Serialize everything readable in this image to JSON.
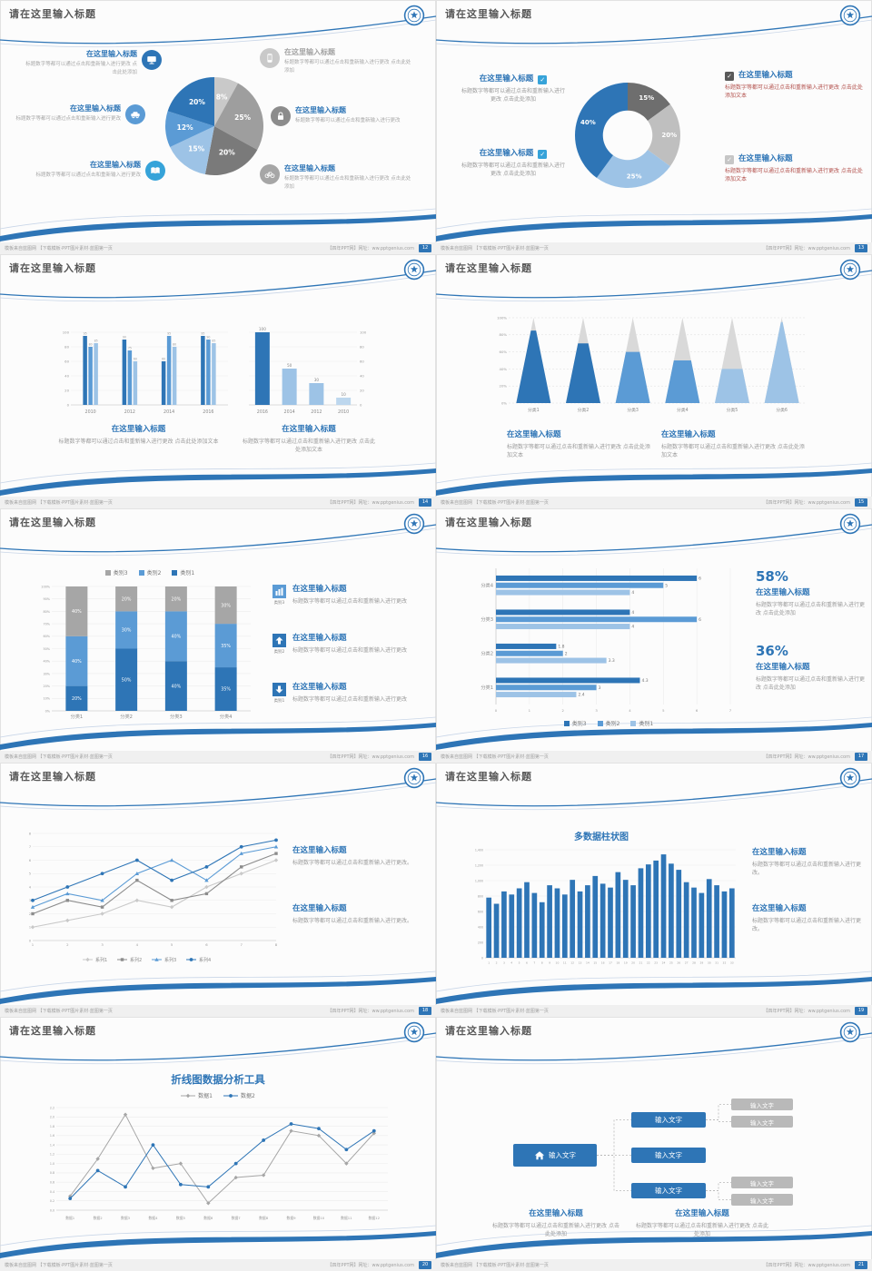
{
  "colors": {
    "accent_dark": "#2e75b6",
    "accent_mid": "#5b9bd5",
    "accent_light": "#9dc3e6",
    "accent_pale": "#bdd7ee",
    "gray_dark": "#6e6e6e",
    "gray_mid": "#a6a6a6",
    "gray_light": "#c9c9c9",
    "text_gray": "#9a9a9a",
    "red_text": "#b3524e"
  },
  "common": {
    "slide_title": "请在这里输入标题",
    "block_title": "在这里输入标题",
    "para_a": "标题数字等都可以通过点击和重新输入进行更改",
    "para_b": "标题数字等都可以通过点击和重新输入进行更改 点击此处添加",
    "para_c": "标题数字等都可以通过点击和重新输入进行更改 点击此处添加文本",
    "para_d": "标题数字等都可以通过点击和重新输入进行更改。",
    "check_glyph": "✓",
    "footer_left": "模板来自蓝图网 【下载模板·PPT图片素材·蓝图第一页",
    "footer_right": "【四年PPT网】网址：ww.pptgenius.com"
  },
  "slides": [
    {
      "page": "12",
      "icon_bg": [
        "background:#2e75b6",
        "background:#5b9bd5",
        "background:#36a3d9",
        "background:#c9c9c9",
        "background:#8c8c8c",
        "background:#a6a6a6"
      ]
    },
    {
      "page": "13",
      "checks": [
        "background:#36a3d9",
        "background:#36a3d9",
        "background:#595959",
        "background:#c6c6c6"
      ]
    },
    {
      "page": "14"
    },
    {
      "page": "15"
    },
    {
      "page": "16",
      "items": [
        {
          "cap": "类别3"
        },
        {
          "cap": "类别2"
        },
        {
          "cap": "类别1"
        }
      ],
      "icon_bg": [
        "background:#5b9bd5",
        "background:#2e75b6",
        "background:#2e75b6"
      ]
    },
    {
      "page": "17",
      "pct1": "58%",
      "pct2": "36%"
    },
    {
      "page": "18"
    },
    {
      "page": "19",
      "chart_title": "多数据柱状图"
    },
    {
      "page": "20",
      "chart_title": "折线图数据分析工具"
    },
    {
      "page": "21",
      "box_label": "输入文字"
    }
  ],
  "chart_data": [
    {
      "id": "c-pie",
      "type": "pie",
      "title": "",
      "values": [
        8,
        25,
        20,
        15,
        12,
        20
      ],
      "labels": [
        "8%",
        "25%",
        "20%",
        "15%",
        "12%",
        "20%"
      ],
      "colors": [
        "#c9c9c9",
        "#9e9e9e",
        "#7a7a7a",
        "#9dc3e6",
        "#5b9bd5",
        "#2e75b6"
      ]
    },
    {
      "id": "c-donut",
      "type": "donut",
      "values": [
        15,
        20,
        25,
        40
      ],
      "labels": [
        "15%",
        "20%",
        "25%",
        "40%"
      ],
      "colors": [
        "#6e6e6e",
        "#bfbfbf",
        "#9dc3e6",
        "#2e75b6"
      ]
    },
    {
      "id": "c14a",
      "type": "bar",
      "categories": [
        "2010",
        "2012",
        "2014",
        "2016"
      ],
      "ylim": [
        0,
        100
      ],
      "ytick_step": 20,
      "series": [
        {
          "name": "系列1",
          "color": "#2e75b6",
          "values": [
            95,
            90,
            60,
            95
          ]
        },
        {
          "name": "系列2",
          "color": "#5b9bd5",
          "values": [
            80,
            75,
            95,
            90
          ]
        },
        {
          "name": "系列3",
          "color": "#9dc3e6",
          "values": [
            85,
            60,
            80,
            85
          ]
        }
      ]
    },
    {
      "id": "c14b",
      "type": "bar_single",
      "categories": [
        "2016",
        "2014",
        "2012",
        "2010"
      ],
      "ylim": [
        0,
        100
      ],
      "ytick_step": 20,
      "values": [
        100,
        50,
        30,
        10
      ],
      "colors": [
        "#2e75b6",
        "#9dc3e6",
        "#9dc3e6",
        "#bdd7ee"
      ]
    },
    {
      "id": "c15",
      "type": "cone",
      "categories": [
        "分类1",
        "分类2",
        "分类3",
        "分类4",
        "分类5",
        "分类6"
      ],
      "ylim": [
        0,
        100
      ],
      "ytick_step": 20,
      "values": [
        85,
        70,
        60,
        50,
        40,
        95
      ],
      "colors": [
        "#2e75b6",
        "#2e75b6",
        "#5b9bd5",
        "#5b9bd5",
        "#9dc3e6",
        "#9dc3e6"
      ],
      "back_color": "#d9d9d9"
    },
    {
      "id": "c16",
      "type": "stacked",
      "categories": [
        "分类1",
        "分类2",
        "分类3",
        "分类4"
      ],
      "ylim": [
        0,
        100
      ],
      "ytick_step": 10,
      "series": [
        {
          "name": "类别1",
          "color": "#2e75b6",
          "values": [
            20,
            50,
            40,
            35
          ]
        },
        {
          "name": "类别2",
          "color": "#5b9bd5",
          "values": [
            40,
            30,
            40,
            35
          ]
        },
        {
          "name": "类别3",
          "color": "#a6a6a6",
          "values": [
            40,
            20,
            20,
            30
          ]
        }
      ],
      "legend_mount": "lg16"
    },
    {
      "id": "c17",
      "type": "hbar",
      "categories": [
        "分类1",
        "分类2",
        "分类3",
        "分类4"
      ],
      "xlim": [
        0,
        7
      ],
      "xticks": [
        0,
        1,
        2,
        3,
        4,
        5,
        6,
        7
      ],
      "series": [
        {
          "name": "类别3",
          "color": "#2e75b6",
          "values": [
            4.3,
            1.8,
            4,
            6
          ]
        },
        {
          "name": "类别2",
          "color": "#5b9bd5",
          "values": [
            3,
            2,
            6,
            5
          ]
        },
        {
          "name": "类别1",
          "color": "#9dc3e6",
          "values": [
            2.4,
            3.3,
            4,
            4
          ]
        }
      ],
      "legend_mount": "lg17"
    },
    {
      "id": "c18",
      "type": "line",
      "x": [
        1,
        2,
        3,
        4,
        5,
        6,
        7,
        8
      ],
      "ylim": [
        0,
        8
      ],
      "ytick_step": 1,
      "series": [
        {
          "name": "系列1",
          "color": "#c9c9c9",
          "marker": "diamond",
          "values": [
            1,
            1.5,
            2,
            3,
            2.5,
            4,
            5,
            6
          ]
        },
        {
          "name": "系列2",
          "color": "#8c8c8c",
          "marker": "square",
          "values": [
            2,
            3,
            2.5,
            4.5,
            3,
            3.5,
            5.5,
            6.5
          ]
        },
        {
          "name": "系列3",
          "color": "#5b9bd5",
          "marker": "triangle",
          "values": [
            2.5,
            3.5,
            3,
            5,
            6,
            4.5,
            6.5,
            7
          ]
        },
        {
          "name": "系列4",
          "color": "#2e75b6",
          "marker": "circle",
          "values": [
            3,
            4,
            5,
            6,
            4.5,
            5.5,
            7,
            7.5
          ]
        }
      ]
    },
    {
      "id": "c19",
      "type": "column",
      "title": "多数据柱状图",
      "color": "#2e75b6",
      "ylim": [
        0,
        1400
      ],
      "ytick_step": 200,
      "values": [
        780,
        700,
        860,
        820,
        900,
        980,
        840,
        720,
        940,
        900,
        820,
        1010,
        860,
        940,
        1060,
        960,
        910,
        1110,
        1010,
        940,
        1160,
        1210,
        1260,
        1340,
        1220,
        1140,
        980,
        910,
        840,
        1020,
        940,
        860,
        900
      ]
    },
    {
      "id": "c20",
      "type": "line2",
      "title": "折线图数据分析工具",
      "categories": [
        "数据1",
        "数据2",
        "数据3",
        "数据4",
        "数据5",
        "数据6",
        "数据7",
        "数据8",
        "数据9",
        "数据10",
        "数据11",
        "数据12"
      ],
      "ylim": [
        0,
        2.2
      ],
      "ytick_step": 0.2,
      "series": [
        {
          "name": "数据1",
          "color": "#a6a6a6",
          "marker": "diamond",
          "values": [
            0.3,
            1.1,
            2.05,
            0.9,
            1.0,
            0.15,
            0.7,
            0.75,
            1.7,
            1.6,
            1.0,
            1.65
          ]
        },
        {
          "name": "数据2",
          "color": "#2e75b6",
          "marker": "circle",
          "values": [
            0.25,
            0.85,
            0.5,
            1.4,
            0.55,
            0.5,
            1.0,
            1.5,
            1.85,
            1.75,
            1.3,
            1.7
          ]
        }
      ],
      "legend_mount": "lg20"
    }
  ]
}
